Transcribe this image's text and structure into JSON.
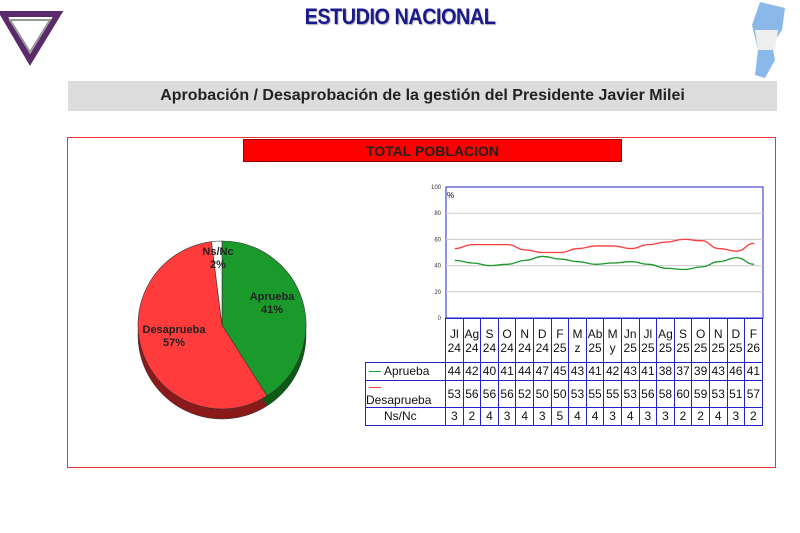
{
  "header": {
    "title": "ESTUDIO NACIONAL",
    "subtitle": "Aprobación / Desaprobación de la gestión del Presidente Javier Milei",
    "banner": "TOTAL POBLACION"
  },
  "colors": {
    "aprueba": "#1a9a2a",
    "desaprueba": "#ff3b3b",
    "nsnc": "#ffffff"
  },
  "chart_data": [
    {
      "type": "pie",
      "slices": [
        {
          "label": "Aprueba",
          "value": 41,
          "text": "41%"
        },
        {
          "label": "Desaprueba",
          "value": 57,
          "text": "57%"
        },
        {
          "label": "Ns/Nc",
          "value": 2,
          "text": "2%"
        }
      ]
    },
    {
      "type": "line",
      "ylabel": "%",
      "ylim": [
        0,
        100
      ],
      "yticks": [
        0,
        20,
        40,
        60,
        80,
        100
      ],
      "categories": [
        [
          "Jl",
          "24"
        ],
        [
          "Ag",
          "24"
        ],
        [
          "S",
          "24"
        ],
        [
          "O",
          "24"
        ],
        [
          "N",
          "24"
        ],
        [
          "D",
          "24"
        ],
        [
          "F",
          "25"
        ],
        [
          "M",
          "z"
        ],
        [
          "Ab",
          "25"
        ],
        [
          "M",
          "y"
        ],
        [
          "Jn",
          "25"
        ],
        [
          "Jl",
          "25"
        ],
        [
          "Ag",
          "25"
        ],
        [
          "S",
          "25"
        ],
        [
          "O",
          "25"
        ],
        [
          "N",
          "25"
        ],
        [
          "D",
          "25"
        ],
        [
          "F",
          "26"
        ]
      ],
      "series": [
        {
          "name": "Aprueba",
          "values": [
            44,
            42,
            40,
            41,
            44,
            47,
            45,
            43,
            41,
            42,
            43,
            41,
            38,
            37,
            39,
            43,
            46,
            41
          ]
        },
        {
          "name": "Desaprueba",
          "values": [
            53,
            56,
            56,
            56,
            52,
            50,
            50,
            53,
            55,
            55,
            53,
            56,
            58,
            60,
            59,
            53,
            51,
            57
          ]
        },
        {
          "name": "Ns/Nc",
          "values": [
            3,
            2,
            4,
            3,
            4,
            3,
            5,
            4,
            4,
            3,
            4,
            3,
            3,
            2,
            2,
            4,
            3,
            2
          ]
        }
      ]
    }
  ]
}
